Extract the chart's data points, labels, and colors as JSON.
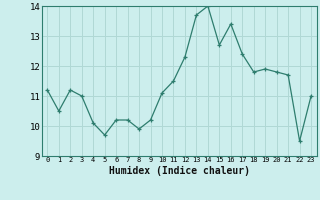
{
  "x": [
    0,
    1,
    2,
    3,
    4,
    5,
    6,
    7,
    8,
    9,
    10,
    11,
    12,
    13,
    14,
    15,
    16,
    17,
    18,
    19,
    20,
    21,
    22,
    23
  ],
  "y": [
    11.2,
    10.5,
    11.2,
    11.0,
    10.1,
    9.7,
    10.2,
    10.2,
    9.9,
    10.2,
    11.1,
    11.5,
    12.3,
    13.7,
    14.0,
    12.7,
    13.4,
    12.4,
    11.8,
    11.9,
    11.8,
    11.7,
    9.5,
    11.0
  ],
  "xlabel": "Humidex (Indice chaleur)",
  "ylim": [
    9,
    14
  ],
  "xlim_min": -0.5,
  "xlim_max": 23.5,
  "yticks": [
    9,
    10,
    11,
    12,
    13,
    14
  ],
  "xticks": [
    0,
    1,
    2,
    3,
    4,
    5,
    6,
    7,
    8,
    9,
    10,
    11,
    12,
    13,
    14,
    15,
    16,
    17,
    18,
    19,
    20,
    21,
    22,
    23
  ],
  "line_color": "#2e7d6e",
  "marker": "+",
  "bg_color": "#cceeed",
  "grid_color": "#b0d8d5",
  "spine_color": "#2e7d6e"
}
